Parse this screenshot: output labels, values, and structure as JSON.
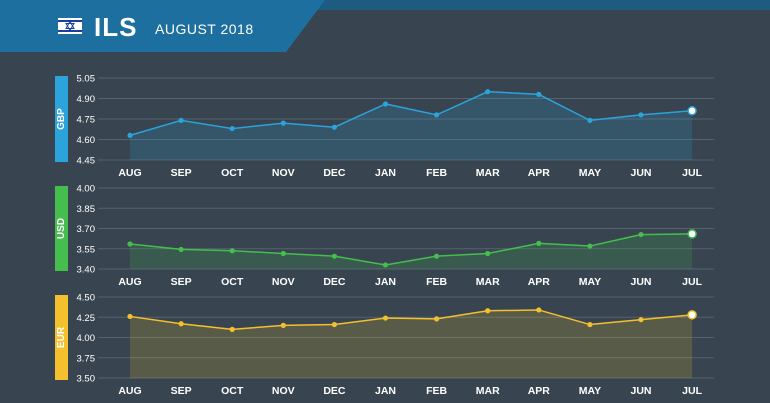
{
  "header": {
    "currency_code": "ILS",
    "period": "AUGUST 2018",
    "flag_icon": "israel-flag-icon"
  },
  "colors": {
    "background": "#384550",
    "header": "#1d6f9f",
    "grid": "#55636e",
    "text": "#ffffff"
  },
  "chart_data": [
    {
      "type": "area",
      "series_label": "GBP",
      "color": "#2ba3db",
      "categories": [
        "AUG",
        "SEP",
        "OCT",
        "NOV",
        "DEC",
        "JAN",
        "FEB",
        "MAR",
        "APR",
        "MAY",
        "JUN",
        "JUL"
      ],
      "values": [
        4.63,
        4.74,
        4.68,
        4.72,
        4.69,
        4.86,
        4.78,
        4.95,
        4.93,
        4.74,
        4.78,
        4.81
      ],
      "ylim": [
        4.45,
        5.05
      ],
      "yticks": [
        "4.45",
        "4.60",
        "4.75",
        "4.90",
        "5.05"
      ],
      "grid": true
    },
    {
      "type": "area",
      "series_label": "USD",
      "color": "#45be4f",
      "categories": [
        "AUG",
        "SEP",
        "OCT",
        "NOV",
        "DEC",
        "JAN",
        "FEB",
        "MAR",
        "APR",
        "MAY",
        "JUN",
        "JUL"
      ],
      "values": [
        3.585,
        3.545,
        3.535,
        3.515,
        3.495,
        3.43,
        3.495,
        3.515,
        3.59,
        3.57,
        3.655,
        3.66
      ],
      "ylim": [
        3.4,
        4.0
      ],
      "yticks": [
        "3.40",
        "3.55",
        "3.70",
        "3.85",
        "4.00"
      ],
      "grid": true
    },
    {
      "type": "area",
      "series_label": "EUR",
      "color": "#f5c02e",
      "categories": [
        "AUG",
        "SEP",
        "OCT",
        "NOV",
        "DEC",
        "JAN",
        "FEB",
        "MAR",
        "APR",
        "MAY",
        "JUN",
        "JUL"
      ],
      "values": [
        4.26,
        4.17,
        4.1,
        4.15,
        4.16,
        4.24,
        4.23,
        4.33,
        4.34,
        4.16,
        4.22,
        4.28
      ],
      "ylim": [
        3.5,
        4.5
      ],
      "yticks": [
        "3.50",
        "3.75",
        "4.00",
        "4.25",
        "4.50"
      ],
      "grid": true
    }
  ]
}
